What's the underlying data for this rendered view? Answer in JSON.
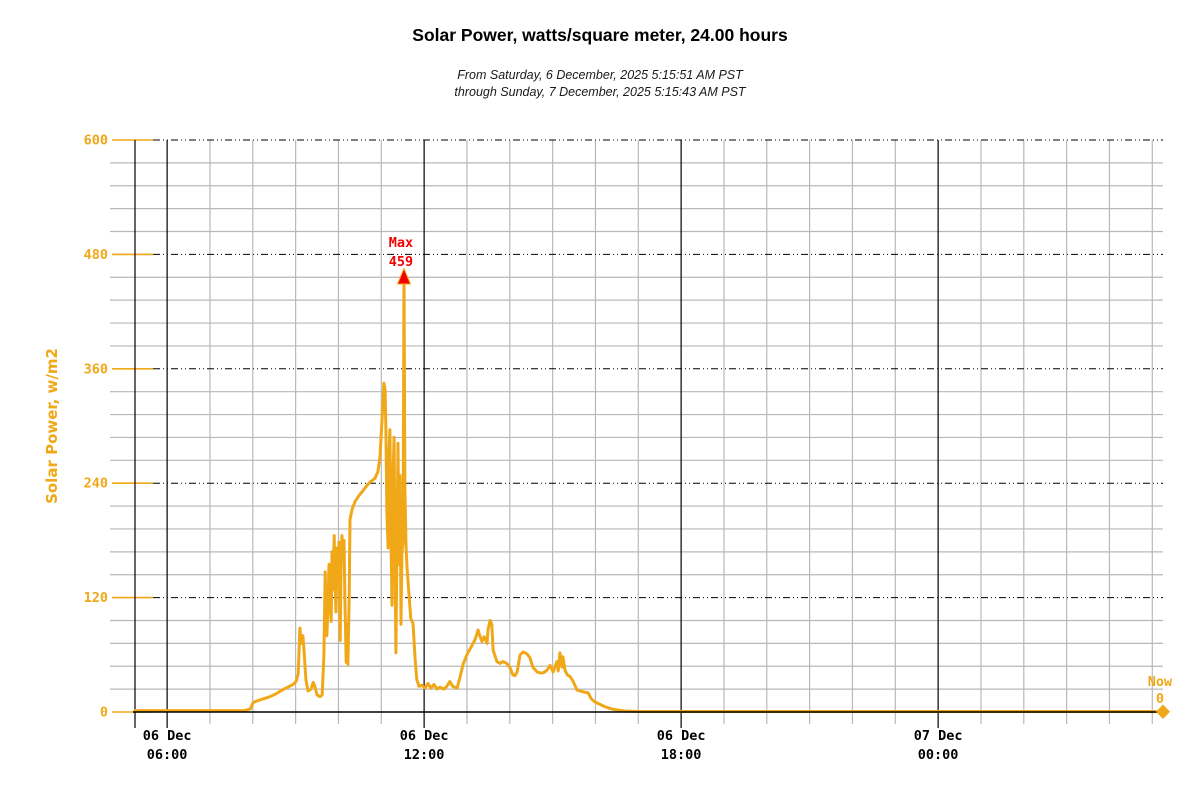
{
  "header": {
    "title": "Solar Power, watts/square meter, 24.00 hours",
    "subtitle_line1": "From Saturday, 6 December, 2025 5:15:51 AM PST",
    "subtitle_line2": "through Sunday, 7 December, 2025 5:15:43 AM PST"
  },
  "colors": {
    "series_gold": "#f0a818",
    "max_red": "#f40000",
    "grid_minor_gray": "#b8b8b8",
    "grid_major_black": "#000000",
    "text_black": "#000000",
    "background": "#ffffff"
  },
  "chart_data": {
    "type": "line",
    "title": "Solar Power, watts/square meter, 24.00 hours",
    "xlabel": "",
    "ylabel": "Solar Power, w/m2",
    "ylim": [
      0,
      600
    ],
    "y_major_ticks": [
      0,
      120,
      240,
      360,
      480,
      600
    ],
    "y_minor_step": 24,
    "x_start": "2025-12-06 05:15:51 PST",
    "x_end": "2025-12-07 05:15:43 PST",
    "x_unit": "hours since start (05:15 AM Dec 6)",
    "x_range_hours": 24,
    "x_minor_step_hours": 1,
    "x_major_ticks": [
      {
        "t": 0.75,
        "line1": "06 Dec",
        "line2": "06:00"
      },
      {
        "t": 6.75,
        "line1": "06 Dec",
        "line2": "12:00"
      },
      {
        "t": 12.75,
        "line1": "06 Dec",
        "line2": "18:00"
      },
      {
        "t": 18.75,
        "line1": "07 Dec",
        "line2": "00:00"
      }
    ],
    "grid": true,
    "legend_position": "none",
    "annotations": {
      "max": {
        "label": "Max",
        "value": "459",
        "t": 6.28,
        "v": 459,
        "color": "#f40000"
      },
      "now": {
        "label": "Now",
        "value": "0",
        "t": 24,
        "v": 0,
        "color": "#f0a818"
      }
    },
    "series": [
      {
        "name": "Solar Power (w/m2)",
        "color": "#f0a818",
        "points": [
          [
            0,
            1.5
          ],
          [
            1.5,
            1.5
          ],
          [
            2.55,
            1.5
          ],
          [
            2.69,
            3
          ],
          [
            2.76,
            10
          ],
          [
            2.87,
            12
          ],
          [
            3.01,
            14
          ],
          [
            3.15,
            16
          ],
          [
            3.29,
            19
          ],
          [
            3.43,
            23
          ],
          [
            3.57,
            26
          ],
          [
            3.69,
            29
          ],
          [
            3.76,
            32
          ],
          [
            3.81,
            40
          ],
          [
            3.85,
            88
          ],
          [
            3.88,
            72
          ],
          [
            3.92,
            80
          ],
          [
            3.95,
            62
          ],
          [
            3.99,
            34
          ],
          [
            4.04,
            22
          ],
          [
            4.11,
            24
          ],
          [
            4.16,
            31
          ],
          [
            4.2,
            27
          ],
          [
            4.25,
            18
          ],
          [
            4.32,
            16
          ],
          [
            4.37,
            18
          ],
          [
            4.41,
            60
          ],
          [
            4.44,
            147
          ],
          [
            4.46,
            105
          ],
          [
            4.48,
            80
          ],
          [
            4.51,
            120
          ],
          [
            4.53,
            155
          ],
          [
            4.55,
            118
          ],
          [
            4.58,
            95
          ],
          [
            4.6,
            168
          ],
          [
            4.62,
            128
          ],
          [
            4.65,
            185
          ],
          [
            4.67,
            142
          ],
          [
            4.69,
            105
          ],
          [
            4.72,
            172
          ],
          [
            4.74,
            138
          ],
          [
            4.76,
            178
          ],
          [
            4.79,
            75
          ],
          [
            4.81,
            148
          ],
          [
            4.83,
            185
          ],
          [
            4.86,
            162
          ],
          [
            4.88,
            180
          ],
          [
            4.9,
            118
          ],
          [
            4.93,
            52
          ],
          [
            4.95,
            92
          ],
          [
            4.97,
            50
          ],
          [
            5.0,
            120
          ],
          [
            5.02,
            202
          ],
          [
            5.07,
            213
          ],
          [
            5.14,
            221
          ],
          [
            5.23,
            227
          ],
          [
            5.32,
            232
          ],
          [
            5.42,
            238
          ],
          [
            5.51,
            242
          ],
          [
            5.6,
            245
          ],
          [
            5.67,
            252
          ],
          [
            5.72,
            268
          ],
          [
            5.77,
            308
          ],
          [
            5.81,
            345
          ],
          [
            5.84,
            338
          ],
          [
            5.86,
            290
          ],
          [
            5.88,
            210
          ],
          [
            5.91,
            172
          ],
          [
            5.93,
            268
          ],
          [
            5.95,
            296
          ],
          [
            5.98,
            175
          ],
          [
            6.0,
            112
          ],
          [
            6.02,
            242
          ],
          [
            6.05,
            288
          ],
          [
            6.07,
            158
          ],
          [
            6.09,
            62
          ],
          [
            6.12,
            192
          ],
          [
            6.14,
            282
          ],
          [
            6.16,
            155
          ],
          [
            6.19,
            248
          ],
          [
            6.21,
            92
          ],
          [
            6.23,
            168
          ],
          [
            6.26,
            178
          ],
          [
            6.28,
            459
          ],
          [
            6.3,
            235
          ],
          [
            6.33,
            172
          ],
          [
            6.35,
            152
          ],
          [
            6.4,
            122
          ],
          [
            6.44,
            98
          ],
          [
            6.49,
            93
          ],
          [
            6.54,
            56
          ],
          [
            6.58,
            34
          ],
          [
            6.63,
            27
          ],
          [
            6.7,
            28
          ],
          [
            6.77,
            25
          ],
          [
            6.84,
            30
          ],
          [
            6.91,
            25
          ],
          [
            6.98,
            29
          ],
          [
            7.05,
            24
          ],
          [
            7.12,
            26
          ],
          [
            7.21,
            24
          ],
          [
            7.28,
            27
          ],
          [
            7.35,
            32
          ],
          [
            7.42,
            27
          ],
          [
            7.52,
            25
          ],
          [
            7.59,
            37
          ],
          [
            7.66,
            50
          ],
          [
            7.73,
            58
          ],
          [
            7.77,
            62
          ],
          [
            7.82,
            66
          ],
          [
            7.87,
            70
          ],
          [
            7.94,
            76
          ],
          [
            8.01,
            86
          ],
          [
            8.05,
            80
          ],
          [
            8.1,
            74
          ],
          [
            8.15,
            79
          ],
          [
            8.22,
            72
          ],
          [
            8.24,
            86
          ],
          [
            8.29,
            96
          ],
          [
            8.33,
            92
          ],
          [
            8.36,
            65
          ],
          [
            8.45,
            53
          ],
          [
            8.52,
            51
          ],
          [
            8.59,
            53
          ],
          [
            8.68,
            51
          ],
          [
            8.75,
            47
          ],
          [
            8.82,
            39
          ],
          [
            8.87,
            38
          ],
          [
            8.92,
            42
          ],
          [
            8.99,
            60
          ],
          [
            9.06,
            63
          ],
          [
            9.15,
            61
          ],
          [
            9.22,
            57
          ],
          [
            9.29,
            47
          ],
          [
            9.39,
            42
          ],
          [
            9.46,
            41
          ],
          [
            9.53,
            41
          ],
          [
            9.62,
            44
          ],
          [
            9.69,
            49
          ],
          [
            9.76,
            42
          ],
          [
            9.85,
            53
          ],
          [
            9.88,
            43
          ],
          [
            9.92,
            62
          ],
          [
            9.97,
            47
          ],
          [
            9.99,
            58
          ],
          [
            10.04,
            44
          ],
          [
            10.09,
            39
          ],
          [
            10.16,
            37
          ],
          [
            10.23,
            32
          ],
          [
            10.32,
            23
          ],
          [
            10.39,
            22
          ],
          [
            10.48,
            21
          ],
          [
            10.58,
            20
          ],
          [
            10.65,
            14
          ],
          [
            10.72,
            11
          ],
          [
            10.81,
            9
          ],
          [
            10.9,
            7
          ],
          [
            11.0,
            5
          ],
          [
            11.14,
            3
          ],
          [
            11.28,
            2
          ],
          [
            11.44,
            1
          ],
          [
            11.79,
            0.5
          ],
          [
            13,
            0.5
          ],
          [
            15,
            0.5
          ],
          [
            17,
            0.5
          ],
          [
            19,
            0.5
          ],
          [
            21,
            0.5
          ],
          [
            23,
            0.5
          ],
          [
            23.95,
            0.4
          ],
          [
            24,
            0
          ]
        ]
      }
    ]
  }
}
